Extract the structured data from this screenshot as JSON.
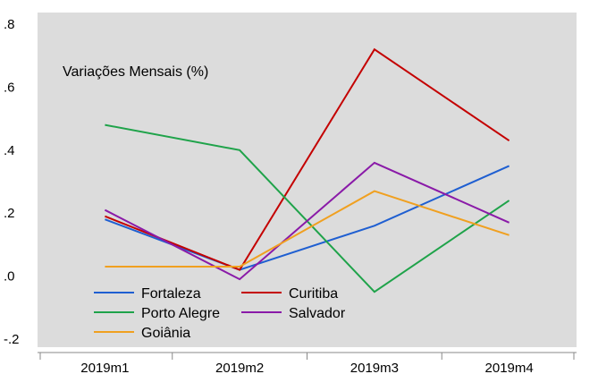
{
  "chart_data": {
    "type": "line",
    "title": "",
    "annotation": "Variações Mensais (%)",
    "xlabel": "",
    "ylabel": "",
    "categories": [
      "2019m1",
      "2019m2",
      "2019m3",
      "2019m4"
    ],
    "y_ticks": [
      ".8",
      ".6",
      ".4",
      ".2",
      ".0",
      "-.2"
    ],
    "ylim": [
      -0.2,
      0.8
    ],
    "grid": false,
    "legend_position": "bottom-left",
    "background_color": "#dcdcdc",
    "series": [
      {
        "name": "Fortaleza",
        "color": "#1f5fd1",
        "values": [
          0.18,
          0.02,
          0.16,
          0.35
        ]
      },
      {
        "name": "Curitiba",
        "color": "#c40000",
        "values": [
          0.19,
          0.02,
          0.72,
          0.43
        ]
      },
      {
        "name": "Porto Alegre",
        "color": "#1fa34a",
        "values": [
          0.48,
          0.4,
          -0.05,
          0.24
        ]
      },
      {
        "name": "Salvador",
        "color": "#8a1aa8",
        "values": [
          0.21,
          -0.01,
          0.36,
          0.17
        ]
      },
      {
        "name": "Goiânia",
        "color": "#f0a020",
        "values": [
          0.03,
          0.03,
          0.27,
          0.13
        ]
      }
    ]
  }
}
